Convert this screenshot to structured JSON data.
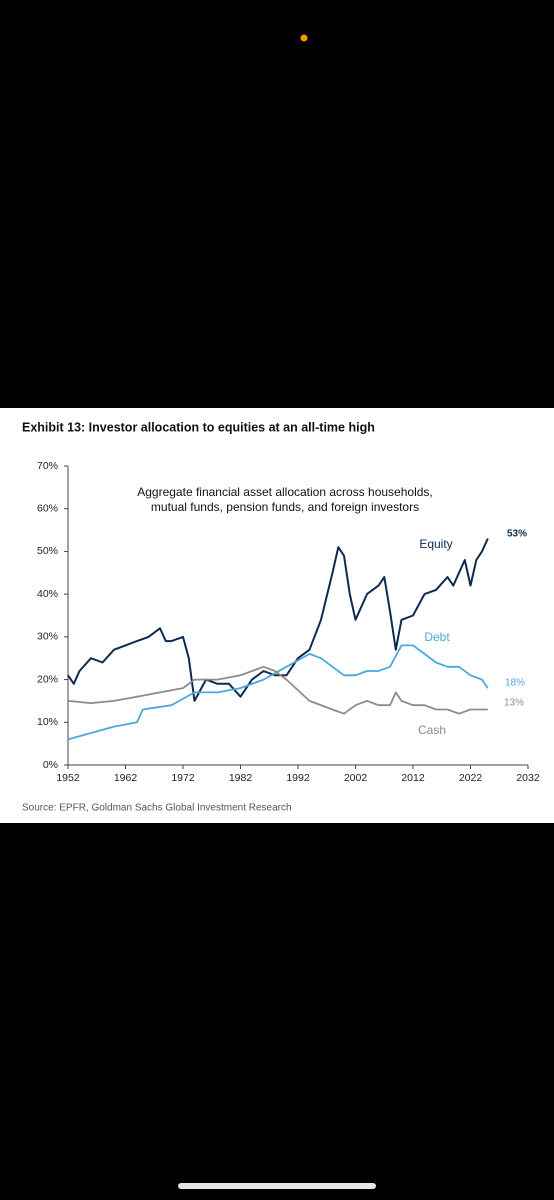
{
  "chart_data": {
    "type": "line",
    "title": "Exhibit 13: Investor allocation to equities at an all-time high",
    "subtitle": [
      "Aggregate financial asset allocation across households,",
      "mutual funds, pension funds, and foreign investors"
    ],
    "source": "Source: EPFR, Goldman Sachs Global Investment Research",
    "xlim": [
      1952,
      2032
    ],
    "xticks": [
      1952,
      1962,
      1972,
      1982,
      1992,
      2002,
      2012,
      2022,
      2032
    ],
    "ylim": [
      0,
      70
    ],
    "yticks": [
      {
        "value": 0,
        "label": "0%"
      },
      {
        "value": 10,
        "label": "10%"
      },
      {
        "value": 20,
        "label": "20%"
      },
      {
        "value": 30,
        "label": "30%"
      },
      {
        "value": 40,
        "label": "40%"
      },
      {
        "value": 50,
        "label": "50%"
      },
      {
        "value": 60,
        "label": "60%"
      },
      {
        "value": 70,
        "label": "70%"
      }
    ],
    "series": [
      {
        "name": "Equity",
        "color": "#0d2b52",
        "end_label": "53%",
        "x": [
          1952,
          1953,
          1954,
          1956,
          1958,
          1960,
          1962,
          1964,
          1966,
          1968,
          1969,
          1970,
          1972,
          1973,
          1974,
          1976,
          1978,
          1980,
          1982,
          1984,
          1986,
          1988,
          1990,
          1992,
          1994,
          1996,
          1998,
          1999,
          2000,
          2001,
          2002,
          2004,
          2006,
          2007,
          2008,
          2009,
          2010,
          2012,
          2014,
          2016,
          2018,
          2019,
          2020,
          2021,
          2022,
          2023,
          2024,
          2025
        ],
        "values": [
          21,
          19,
          22,
          25,
          24,
          27,
          28,
          29,
          30,
          32,
          29,
          29,
          30,
          25,
          15,
          20,
          19,
          19,
          16,
          20,
          22,
          21,
          21,
          25,
          27,
          34,
          45,
          51,
          49,
          40,
          34,
          40,
          42,
          44,
          36,
          27,
          34,
          35,
          40,
          41,
          44,
          42,
          45,
          48,
          42,
          48,
          50,
          53
        ]
      },
      {
        "name": "Debt",
        "color": "#4aa8dc",
        "end_label": "18%",
        "x": [
          1952,
          1956,
          1960,
          1964,
          1965,
          1970,
          1974,
          1978,
          1982,
          1986,
          1990,
          1994,
          1996,
          1998,
          2000,
          2002,
          2004,
          2006,
          2008,
          2010,
          2012,
          2014,
          2016,
          2018,
          2020,
          2022,
          2024,
          2025
        ],
        "values": [
          6,
          7.5,
          9,
          10,
          13,
          14,
          17,
          17,
          18,
          20,
          23,
          26,
          25,
          23,
          21,
          21,
          22,
          22,
          23,
          28,
          28,
          26,
          24,
          23,
          23,
          21,
          20,
          18
        ]
      },
      {
        "name": "Cash",
        "color": "#8c8c8c",
        "end_label": "13%",
        "x": [
          1952,
          1956,
          1960,
          1964,
          1968,
          1972,
          1974,
          1978,
          1982,
          1984,
          1986,
          1988,
          1990,
          1994,
          1998,
          2000,
          2002,
          2004,
          2006,
          2008,
          2009,
          2010,
          2012,
          2014,
          2016,
          2018,
          2020,
          2022,
          2024,
          2025
        ],
        "values": [
          15,
          14.5,
          15,
          16,
          17,
          18,
          20,
          20,
          21,
          22,
          23,
          22,
          20,
          15,
          13,
          12,
          14,
          15,
          14,
          14,
          17,
          15,
          14,
          14,
          13,
          13,
          12,
          13,
          13,
          13
        ]
      }
    ]
  }
}
